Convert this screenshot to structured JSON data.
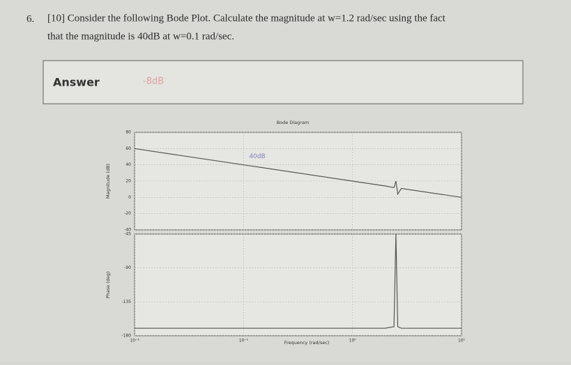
{
  "question": {
    "number": "6.",
    "line1": "[10] Consider the following Bode Plot. Calculate the magnitude at w=1.2 rad/sec using the fact",
    "line2": "that the magnitude is 40dB at w=0.1 rad/sec."
  },
  "answer": {
    "label": "Answer",
    "value": "-8dB"
  },
  "bode": {
    "type": "line",
    "title": "Bode Diagram",
    "xlabel": "Frequency (rad/sec)",
    "log_x": true,
    "xlim": [
      0.01,
      10
    ],
    "xticks": [
      {
        "value": 0.01,
        "label": "10⁻²"
      },
      {
        "value": 0.1,
        "label": "10⁻¹"
      },
      {
        "value": 1,
        "label": "10⁰"
      },
      {
        "value": 10,
        "label": "10¹"
      }
    ],
    "x": [
      0.01,
      0.1,
      1,
      2,
      2.4,
      2.5,
      2.6,
      2.8,
      10
    ],
    "magnitude": {
      "ylabel": "Magnitude (dB)",
      "ylim": [
        -40,
        80
      ],
      "yticks": [
        80,
        60,
        40,
        20,
        0,
        -20,
        -40
      ],
      "values": [
        60,
        40,
        20,
        14,
        12,
        20,
        4,
        11,
        0
      ],
      "annotation": "40dB"
    },
    "phase": {
      "ylabel": "Phase (deg)",
      "ylim": [
        -180,
        -45
      ],
      "yticks": [
        -45,
        -90,
        -135,
        -180
      ],
      "values": [
        -170,
        -170,
        -170,
        -170,
        -168,
        -45,
        -168,
        -170,
        -170
      ]
    },
    "grid": true,
    "color": "#555555"
  }
}
